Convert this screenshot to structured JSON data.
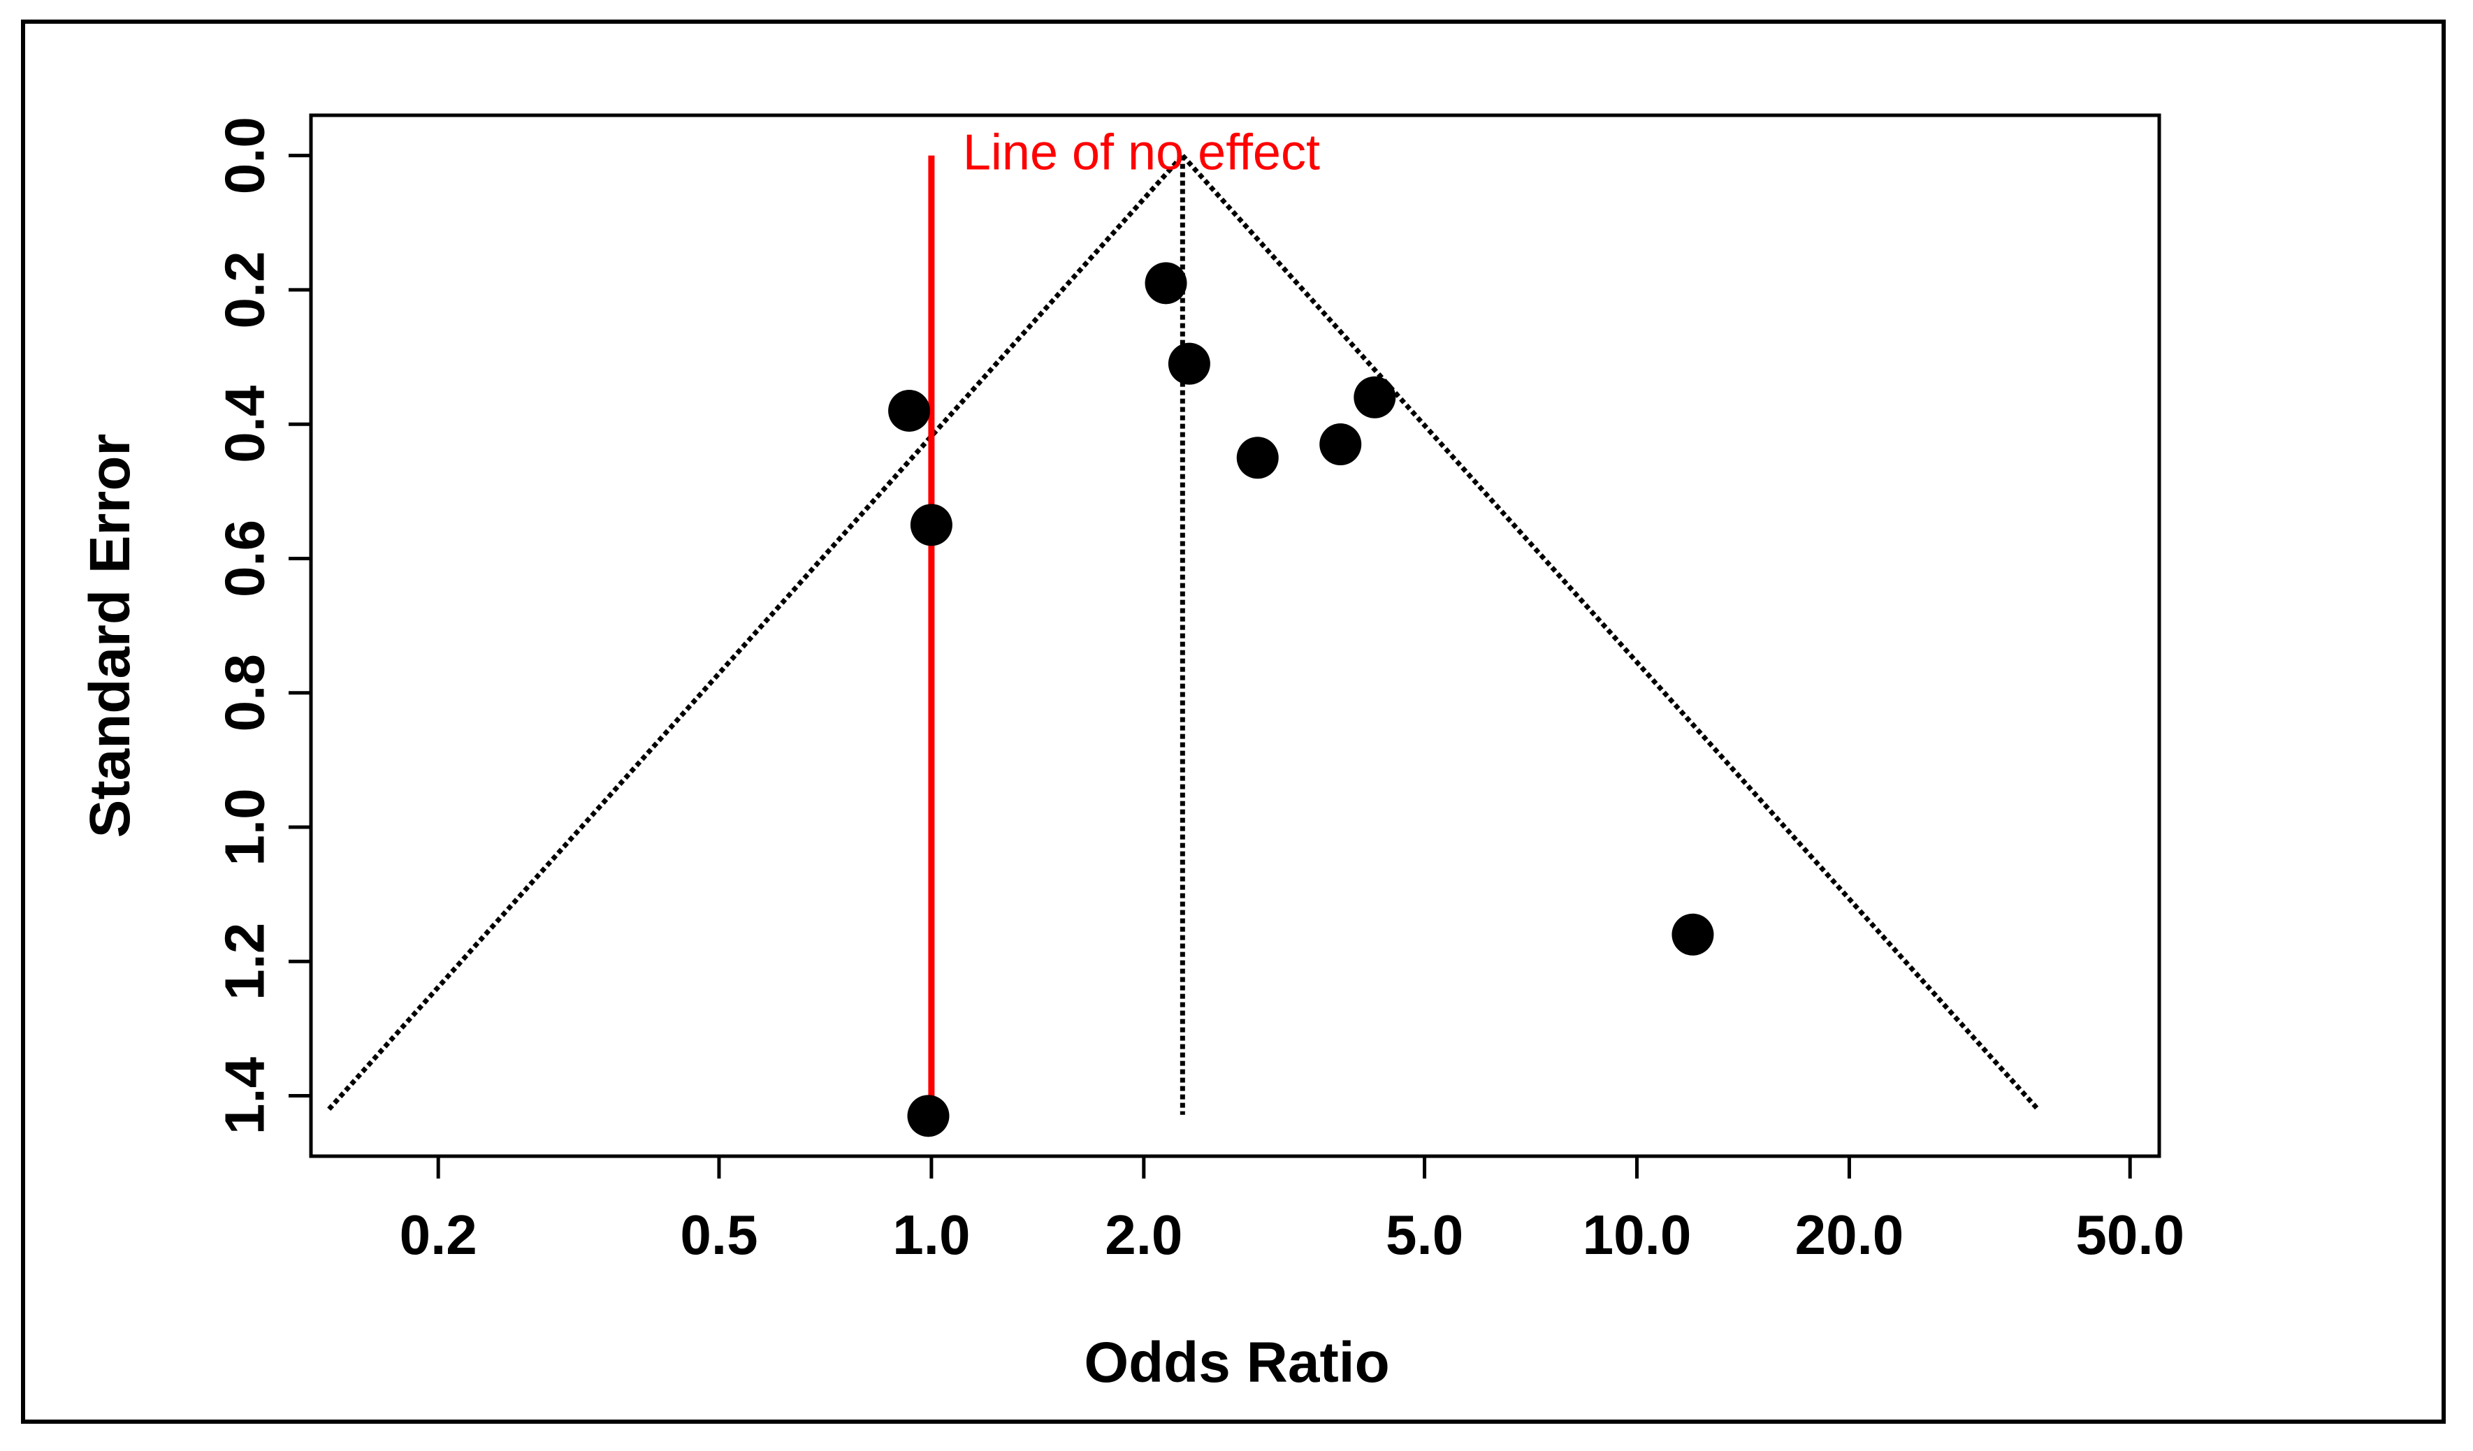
{
  "chart_data": {
    "type": "scatter",
    "subtype": "funnel-plot",
    "title": "",
    "xlabel": "Odds Ratio",
    "ylabel": "Standard Error",
    "x_scale": "log",
    "y_reversed": true,
    "xlim": [
      0.132,
      55.0
    ],
    "ylim": [
      1.49,
      -0.06
    ],
    "x_ticks": [
      0.2,
      0.5,
      1.0,
      2.0,
      5.0,
      10.0,
      20.0,
      50.0
    ],
    "x_tick_labels": [
      "0.2",
      "0.5",
      "1.0",
      "2.0",
      "5.0",
      "10.0",
      "20.0",
      "50.0"
    ],
    "y_ticks": [
      0.0,
      0.2,
      0.4,
      0.6,
      0.8,
      1.0,
      1.2,
      1.4
    ],
    "y_tick_labels": [
      "0.0",
      "0.2",
      "0.4",
      "0.6",
      "0.8",
      "1.0",
      "1.2",
      "1.4"
    ],
    "grid": false,
    "points": [
      {
        "x": 0.93,
        "y": 0.38
      },
      {
        "x": 1.0,
        "y": 0.55
      },
      {
        "x": 2.15,
        "y": 0.19
      },
      {
        "x": 2.32,
        "y": 0.31
      },
      {
        "x": 2.9,
        "y": 0.45
      },
      {
        "x": 3.8,
        "y": 0.43
      },
      {
        "x": 4.25,
        "y": 0.36
      },
      {
        "x": 12.0,
        "y": 1.16
      },
      {
        "x": 0.99,
        "y": 1.43
      }
    ],
    "pooled_estimate": 2.27,
    "funnel": {
      "apex": {
        "x": 2.27,
        "y": 0.0
      },
      "bottom_se": 1.42,
      "bottom_left_x": 0.14,
      "bottom_right_x": 37.0
    },
    "reference_line": {
      "x": 1.0,
      "y_from": 0.0,
      "y_to": 1.42,
      "label": "Line of no effect",
      "color": "#ff0000"
    }
  },
  "style": {
    "point_color": "#000000",
    "funnel_color": "#000000",
    "reference_color": "#ff0000"
  }
}
